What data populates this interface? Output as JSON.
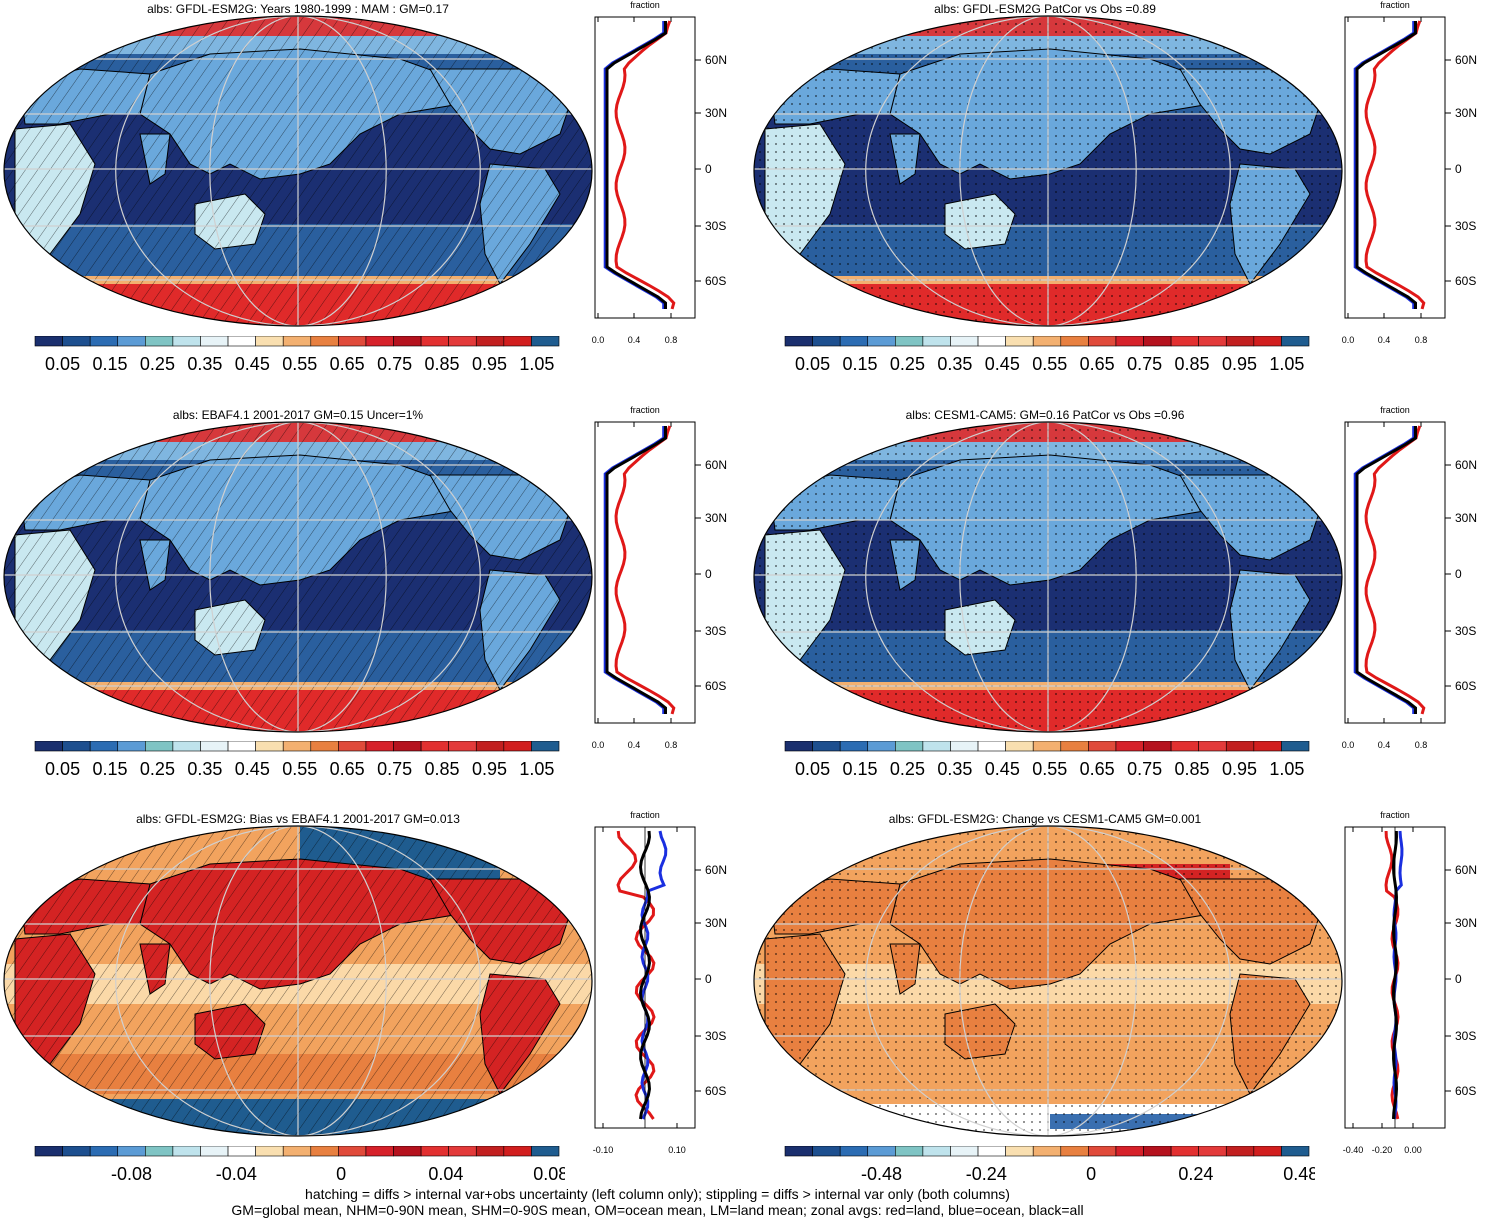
{
  "panels": [
    {
      "id": "p1",
      "title": "albs: GFDL-ESM2G: Years 1980-1999 : MAM : GM=0.17",
      "overlay": "hatch",
      "kind": "abs"
    },
    {
      "id": "p2",
      "title": "albs: GFDL-ESM2G PatCor vs Obs =0.89",
      "overlay": "dots",
      "kind": "abs"
    },
    {
      "id": "p3",
      "title": "albs: EBAF4.1 2001-2017 GM=0.15 Uncer=1%",
      "overlay": "hatch",
      "kind": "abs"
    },
    {
      "id": "p4",
      "title": "albs: CESM1-CAM5: GM=0.16 PatCor vs Obs =0.96",
      "overlay": "dots",
      "kind": "abs"
    },
    {
      "id": "p5",
      "title": "albs: GFDL-ESM2G: Bias vs EBAF4.1 2001-2017 GM=0.013",
      "overlay": "hatch",
      "kind": "diff"
    },
    {
      "id": "p6",
      "title": "albs: GFDL-ESM2G: Change vs CESM1-CAM5 GM=0.001",
      "overlay": "dots",
      "kind": "diff"
    }
  ],
  "profile": {
    "axis_title": "fraction",
    "lat_labels": [
      "60N",
      "30N",
      "0",
      "30S",
      "60S"
    ],
    "ticks_abs": [
      "0.0",
      "0.4",
      "0.8"
    ],
    "ticks_abs2": [
      "0.0",
      "0.4",
      "0.8"
    ],
    "ticks_bias": [
      "-0.10",
      "0.10"
    ],
    "ticks_change": [
      "-0.40",
      "-0.20",
      "0.00"
    ]
  },
  "colorbars": {
    "abs_labels": [
      "0.05",
      "0.15",
      "0.25",
      "0.35",
      "0.45",
      "0.55",
      "0.65",
      "0.75",
      "0.85",
      "0.95",
      "1.05"
    ],
    "bias_labels": [
      "-0.08",
      "-0.04",
      "0",
      "0.04",
      "0.08"
    ],
    "change_labels": [
      "-0.48",
      "-0.24",
      "0",
      "0.24",
      "0.48"
    ],
    "colors": [
      "#1a2f6e",
      "#1d4f8f",
      "#2b6cb3",
      "#5b9bd5",
      "#7fc4c4",
      "#bfe3ec",
      "#e7f3f7",
      "#ffffff",
      "#f9dfb0",
      "#f3b070",
      "#e88040",
      "#e04a3a",
      "#d6212a",
      "#b5121e",
      "#e23030",
      "#e33a3a",
      "#c21f1f",
      "#d11e1e",
      "#1f5c8f"
    ]
  },
  "footer": {
    "line1": "hatching = diffs > internal var+obs uncertainty (left column only); stippling = diffs > internal var only (both columns)",
    "line2": "GM=global mean, NHM=0-90N mean, SHM=0-90S mean, OM=ocean mean, LM=land mean; zonal avgs: red=land, blue=ocean, black=all"
  }
}
